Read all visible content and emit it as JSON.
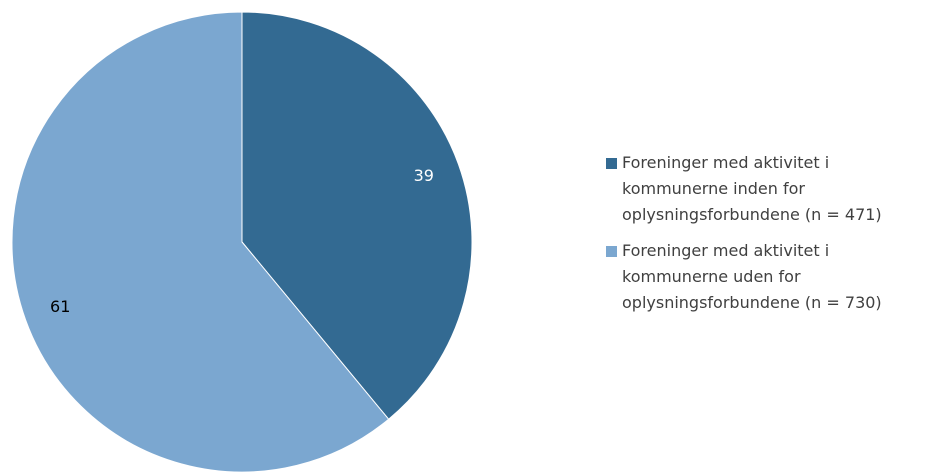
{
  "chart_data": {
    "type": "pie",
    "categories": [
      "Foreninger med aktivitet i kommunerne inden for oplysningsforbundene (n = 471)",
      "Foreninger med aktivitet i kommunerne uden for oplysningsforbundene (n = 730)"
    ],
    "values": [
      39,
      61
    ],
    "colors": [
      "#336a92",
      "#7ba7d0"
    ],
    "legend": "right"
  }
}
